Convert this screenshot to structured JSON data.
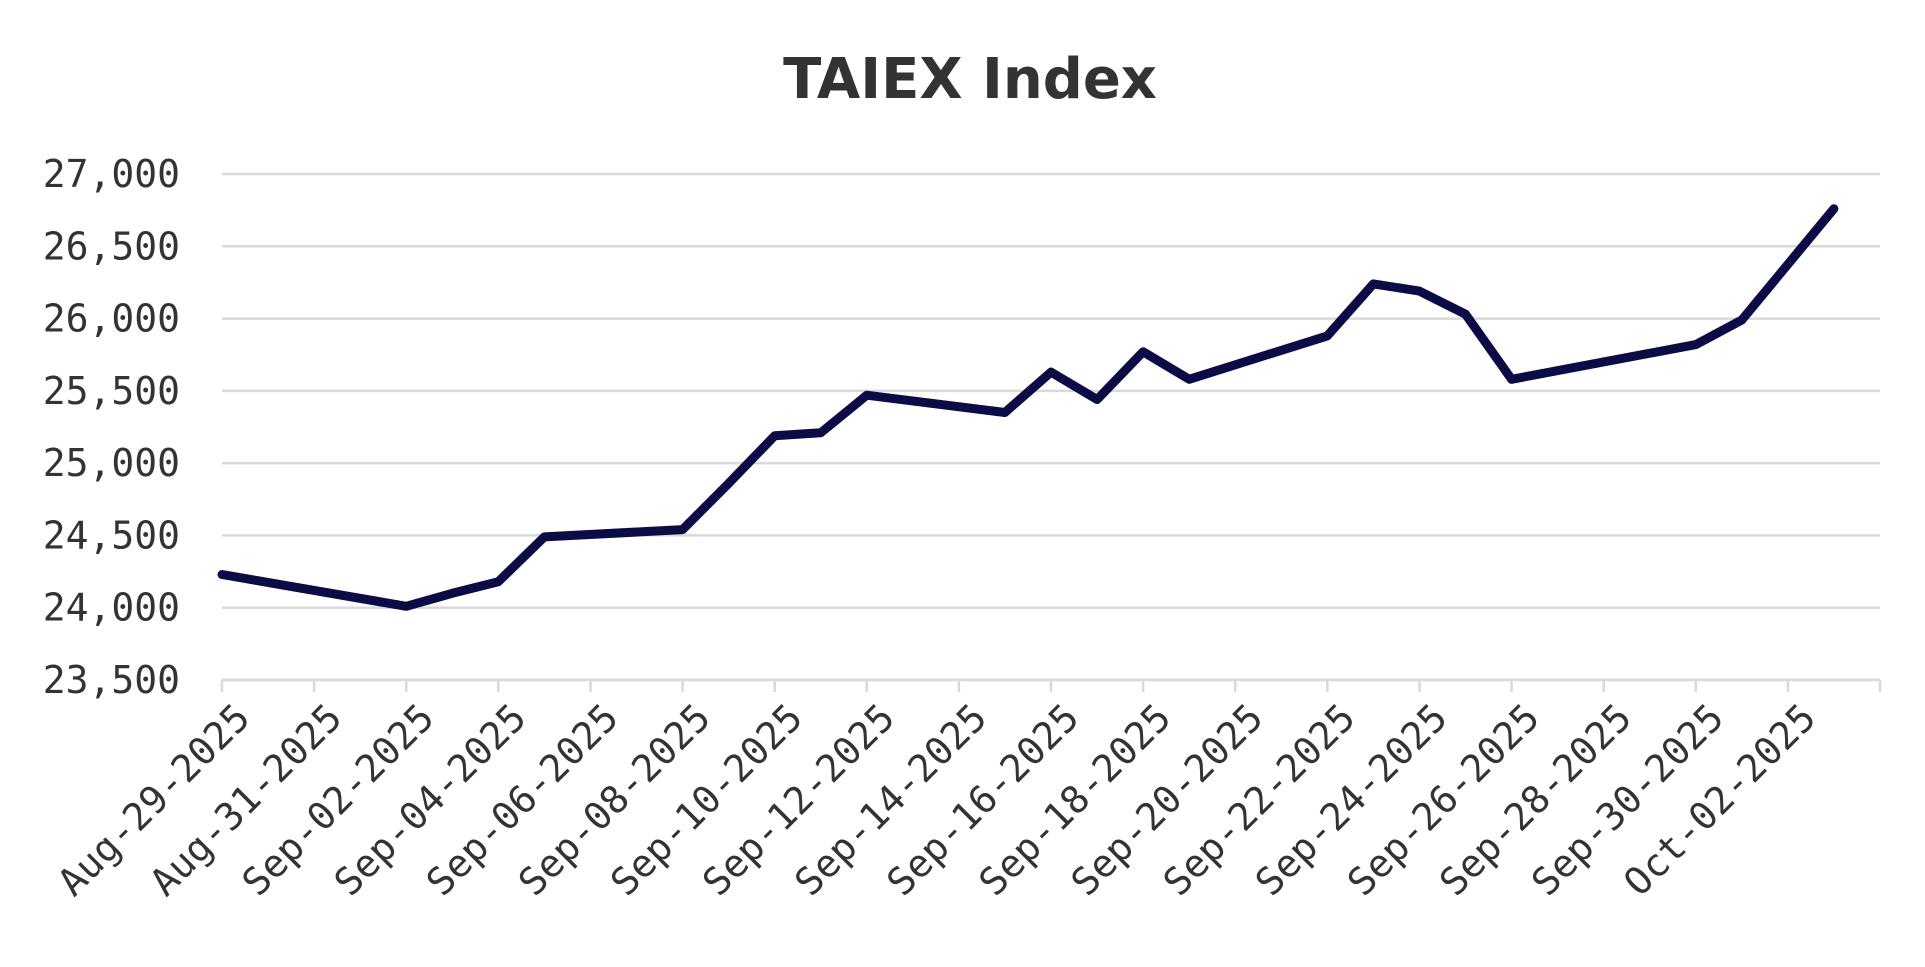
{
  "chart_data": {
    "type": "line",
    "title": "TAIEX Index",
    "xlabel": "",
    "ylabel": "",
    "ylim": [
      23500,
      27000
    ],
    "yticks": [
      23500,
      24000,
      24500,
      25000,
      25500,
      26000,
      26500,
      27000
    ],
    "ytick_labels": [
      "23,500",
      "24,000",
      "24,500",
      "25,000",
      "25,500",
      "26,000",
      "26,500",
      "27,000"
    ],
    "xlim": [
      "2025-08-29",
      "2025-10-04"
    ],
    "xticks": [
      "2025-08-29",
      "2025-08-31",
      "2025-09-02",
      "2025-09-04",
      "2025-09-06",
      "2025-09-08",
      "2025-09-10",
      "2025-09-12",
      "2025-09-14",
      "2025-09-16",
      "2025-09-18",
      "2025-09-20",
      "2025-09-22",
      "2025-09-24",
      "2025-09-26",
      "2025-09-28",
      "2025-09-30",
      "2025-10-02"
    ],
    "xtick_labels": [
      "Aug-29-2025",
      "Aug-31-2025",
      "Sep-02-2025",
      "Sep-04-2025",
      "Sep-06-2025",
      "Sep-08-2025",
      "Sep-10-2025",
      "Sep-12-2025",
      "Sep-14-2025",
      "Sep-16-2025",
      "Sep-18-2025",
      "Sep-20-2025",
      "Sep-22-2025",
      "Sep-24-2025",
      "Sep-26-2025",
      "Sep-28-2025",
      "Sep-30-2025",
      "Oct-02-2025"
    ],
    "grid": true,
    "line_color": "#0b0b45",
    "series": [
      {
        "x": [
          "2025-08-29",
          "2025-09-02",
          "2025-09-03",
          "2025-09-04",
          "2025-09-05",
          "2025-09-08",
          "2025-09-09",
          "2025-09-10",
          "2025-09-11",
          "2025-09-12",
          "2025-09-15",
          "2025-09-16",
          "2025-09-17",
          "2025-09-18",
          "2025-09-19",
          "2025-09-22",
          "2025-09-23",
          "2025-09-24",
          "2025-09-25",
          "2025-09-26",
          "2025-09-30",
          "2025-10-01",
          "2025-10-03"
        ],
        "values": [
          24230,
          24010,
          24100,
          24180,
          24490,
          24540,
          24860,
          25190,
          25210,
          25470,
          25350,
          25630,
          25440,
          25770,
          25580,
          25880,
          26240,
          26190,
          26030,
          25580,
          25820,
          25990,
          26760
        ]
      }
    ]
  }
}
